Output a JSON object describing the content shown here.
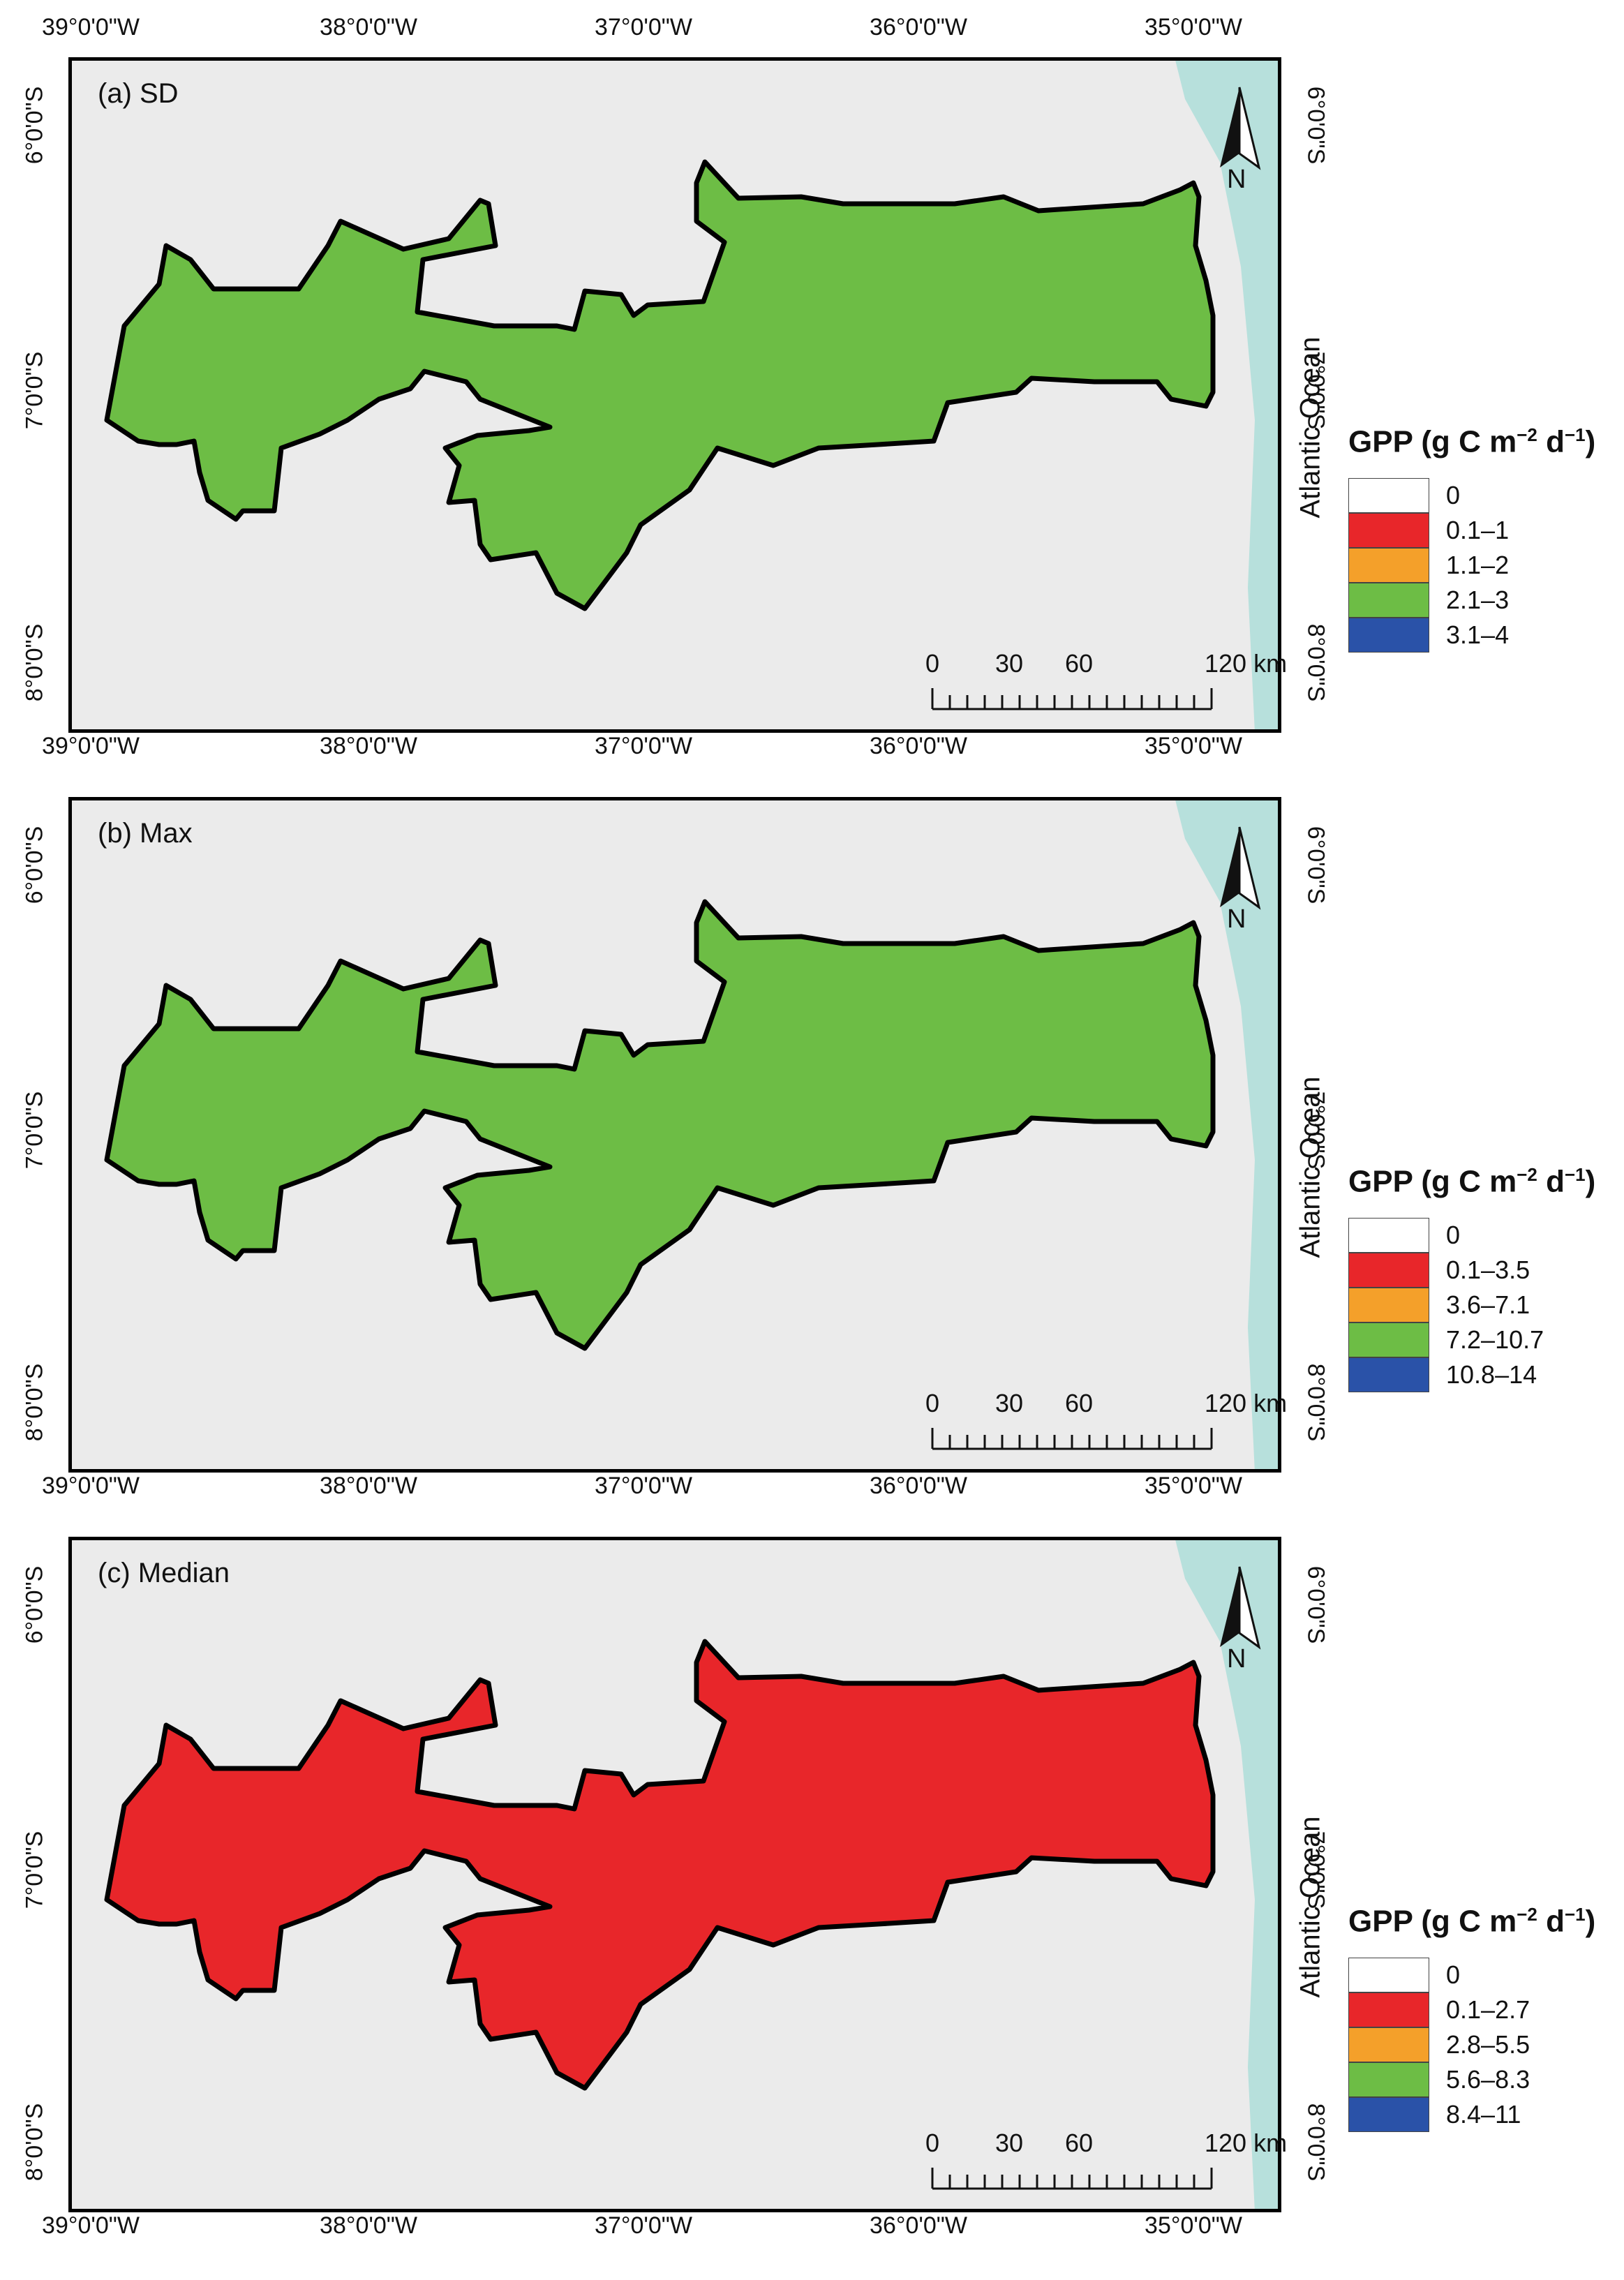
{
  "figure": {
    "panels": [
      {
        "title": "(a) SD",
        "legend": {
          "title_main": "GPP (g C m",
          "sup1": "−2",
          "mid": " d",
          "sup2": "−1",
          "end": ")",
          "items": [
            {
              "label": "0",
              "color": "#ffffff"
            },
            {
              "label": "0.1–1",
              "color": "#e8262a"
            },
            {
              "label": "1.1–2",
              "color": "#f4a02a"
            },
            {
              "label": "2.1–3",
              "color": "#6dbd45"
            },
            {
              "label": "3.1–4",
              "color": "#2a52a8"
            }
          ]
        }
      },
      {
        "title": "(b) Max",
        "legend": {
          "title_main": "GPP (g C m",
          "sup1": "−2",
          "mid": " d",
          "sup2": "−1",
          "end": ")",
          "items": [
            {
              "label": "0",
              "color": "#ffffff"
            },
            {
              "label": "0.1–3.5",
              "color": "#e8262a"
            },
            {
              "label": "3.6–7.1",
              "color": "#f4a02a"
            },
            {
              "label": "7.2–10.7",
              "color": "#6dbd45"
            },
            {
              "label": "10.8–14",
              "color": "#2a52a8"
            }
          ]
        }
      },
      {
        "title": "(c) Median",
        "legend": {
          "title_main": "GPP (g C m",
          "sup1": "−2",
          "mid": " d",
          "sup2": "−1",
          "end": ")",
          "items": [
            {
              "label": "0",
              "color": "#ffffff"
            },
            {
              "label": "0.1–2.7",
              "color": "#e8262a"
            },
            {
              "label": "2.8–5.5",
              "color": "#f4a02a"
            },
            {
              "label": "5.6–8.3",
              "color": "#6dbd45"
            },
            {
              "label": "8.4–11",
              "color": "#2a52a8"
            }
          ]
        }
      }
    ],
    "lon_ticks": [
      "39°0'0\"W",
      "38°0'0\"W",
      "37°0'0\"W",
      "36°0'0\"W",
      "35°0'0\"W"
    ],
    "lat_ticks": [
      "6°0'0\"S",
      "7°0'0\"S",
      "8°0'0\"S"
    ],
    "ocean_label": "Atlantic Ocean",
    "north_label": "N",
    "scale_bar": {
      "labels": [
        "0",
        "30",
        "60",
        "120 km"
      ]
    },
    "colors": {
      "ocean": "#b7e0dc",
      "terrain": "#ebebeb",
      "boundary": "#000000"
    },
    "map_dominant_colors": [
      "#6dbd45",
      "#6dbd45",
      "#e8262a"
    ]
  }
}
